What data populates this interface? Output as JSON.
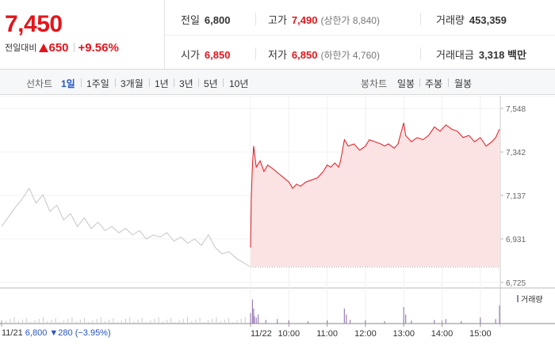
{
  "header": {
    "current_price": "7,450",
    "change_label": "전일대비",
    "change_value": "650",
    "change_rate": "+9.56%",
    "prev_close": {
      "label": "전일",
      "value": "6,800"
    },
    "open": {
      "label": "시가",
      "value": "6,850"
    },
    "high": {
      "label": "고가",
      "value": "7,490",
      "sub": "(상한가 8,840)"
    },
    "low": {
      "label": "저가",
      "value": "6,850",
      "sub": "(하한가 4,760)"
    },
    "volume": {
      "label": "거래량",
      "value": "453,359"
    },
    "amount": {
      "label": "거래대금",
      "value": "3,318 백만"
    }
  },
  "tabs": {
    "line_label": "선차트",
    "line_tabs": [
      "1일",
      "1주일",
      "3개월",
      "1년",
      "3년",
      "5년",
      "10년"
    ],
    "active": "1일",
    "candle_label": "봉차트",
    "candle_tabs": [
      "일봉",
      "주봉",
      "월봉"
    ]
  },
  "colors": {
    "up": "#e4151c",
    "down": "#2754c4",
    "price_line_today": "#e4151c",
    "price_fill_today": "#fbe3e4",
    "price_line_prev": "#c6c6c6",
    "volume_bar": "#9b7fb6"
  },
  "chart_data": {
    "type": "line",
    "y_ticks": [
      "7,548",
      "7,342",
      "7,137",
      "6,931",
      "6,725"
    ],
    "y_tick_values": [
      7548,
      7342,
      7137,
      6931,
      6725
    ],
    "ylim": [
      6725,
      7548
    ],
    "x_ticks": [
      "11/22",
      "10:00",
      "11:00",
      "12:00",
      "13:00",
      "14:00",
      "15:00"
    ],
    "prev_day_date": "11/21",
    "prev_day_close": "6,800",
    "prev_day_change": "280",
    "prev_day_change_rate": "(−3.95%)",
    "volume_legend": "거래량",
    "prev_day_series": [
      [
        0,
        6990
      ],
      [
        1,
        7080
      ],
      [
        1.5,
        7120
      ],
      [
        2,
        7170
      ],
      [
        2.5,
        7100
      ],
      [
        3,
        7140
      ],
      [
        3.5,
        7060
      ],
      [
        4,
        7090
      ],
      [
        4.5,
        7020
      ],
      [
        5,
        7050
      ],
      [
        5.5,
        6990
      ],
      [
        6,
        7030
      ],
      [
        6.5,
        6980
      ],
      [
        7,
        7010
      ],
      [
        7.5,
        6970
      ],
      [
        8,
        6990
      ],
      [
        8.5,
        6960
      ],
      [
        9,
        6980
      ],
      [
        9.5,
        6950
      ],
      [
        10,
        6970
      ],
      [
        10.5,
        6930
      ],
      [
        11,
        6950
      ],
      [
        11.5,
        6940
      ],
      [
        12,
        6960
      ],
      [
        12.5,
        6920
      ],
      [
        13,
        6940
      ],
      [
        13.5,
        6910
      ],
      [
        14,
        6930
      ],
      [
        14.5,
        6900
      ],
      [
        15,
        6950
      ],
      [
        15.5,
        6890
      ],
      [
        16,
        6860
      ],
      [
        16.5,
        6870
      ],
      [
        17,
        6840
      ],
      [
        17.5,
        6820
      ],
      [
        18,
        6800
      ]
    ],
    "today_series": [
      [
        9.0,
        6890
      ],
      [
        9.02,
        7130
      ],
      [
        9.05,
        7280
      ],
      [
        9.08,
        7370
      ],
      [
        9.15,
        7270
      ],
      [
        9.25,
        7300
      ],
      [
        9.35,
        7250
      ],
      [
        9.45,
        7280
      ],
      [
        9.6,
        7260
      ],
      [
        9.8,
        7230
      ],
      [
        10.0,
        7200
      ],
      [
        10.1,
        7170
      ],
      [
        10.2,
        7190
      ],
      [
        10.3,
        7180
      ],
      [
        10.45,
        7200
      ],
      [
        10.6,
        7210
      ],
      [
        10.75,
        7220
      ],
      [
        10.9,
        7250
      ],
      [
        11.0,
        7280
      ],
      [
        11.1,
        7270
      ],
      [
        11.2,
        7290
      ],
      [
        11.3,
        7270
      ],
      [
        11.35,
        7300
      ],
      [
        11.45,
        7400
      ],
      [
        11.55,
        7370
      ],
      [
        11.7,
        7380
      ],
      [
        11.85,
        7350
      ],
      [
        12.0,
        7370
      ],
      [
        12.1,
        7400
      ],
      [
        12.25,
        7390
      ],
      [
        12.4,
        7380
      ],
      [
        12.5,
        7370
      ],
      [
        12.6,
        7380
      ],
      [
        12.75,
        7360
      ],
      [
        12.85,
        7380
      ],
      [
        13.0,
        7480
      ],
      [
        13.05,
        7420
      ],
      [
        13.2,
        7390
      ],
      [
        13.35,
        7410
      ],
      [
        13.5,
        7400
      ],
      [
        13.65,
        7420
      ],
      [
        13.8,
        7460
      ],
      [
        13.95,
        7440
      ],
      [
        14.0,
        7450
      ],
      [
        14.1,
        7470
      ],
      [
        14.25,
        7450
      ],
      [
        14.4,
        7440
      ],
      [
        14.55,
        7410
      ],
      [
        14.7,
        7420
      ],
      [
        14.85,
        7390
      ],
      [
        15.0,
        7410
      ],
      [
        15.15,
        7370
      ],
      [
        15.3,
        7390
      ],
      [
        15.4,
        7410
      ],
      [
        15.5,
        7450
      ]
    ],
    "volume_today": [
      [
        9.0,
        0.35
      ],
      [
        9.05,
        0.8
      ],
      [
        9.08,
        0.5
      ],
      [
        9.1,
        0.25
      ],
      [
        9.15,
        0.2
      ],
      [
        9.2,
        0.3
      ],
      [
        9.4,
        0.12
      ],
      [
        9.7,
        0.15
      ],
      [
        10.0,
        0.1
      ],
      [
        10.5,
        0.08
      ],
      [
        11.0,
        0.1
      ],
      [
        11.45,
        0.5
      ],
      [
        11.5,
        0.3
      ],
      [
        11.6,
        0.12
      ],
      [
        12.0,
        0.1
      ],
      [
        12.5,
        0.08
      ],
      [
        13.0,
        0.55
      ],
      [
        13.05,
        0.3
      ],
      [
        13.2,
        0.1
      ],
      [
        13.8,
        0.12
      ],
      [
        14.1,
        0.15
      ],
      [
        14.5,
        0.08
      ],
      [
        15.0,
        0.2
      ],
      [
        15.4,
        0.15
      ],
      [
        15.5,
        0.6
      ]
    ]
  }
}
